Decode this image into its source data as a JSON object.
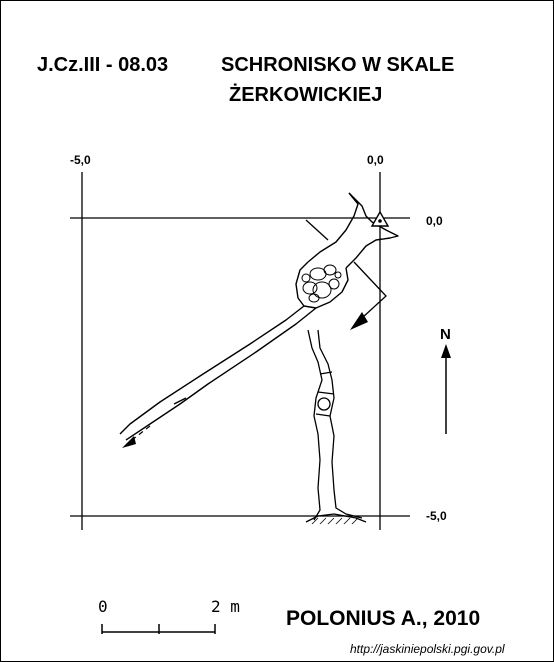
{
  "title": {
    "code": "J.Cz.III - 08.03",
    "name_line1": "SCHRONISKO W SKALE",
    "name_line2": "ŻERKOWICKIEJ"
  },
  "grid": {
    "x_left_label": "-5,0",
    "x_right_label": "0,0",
    "y_top_label": "0,0",
    "y_bottom_label": "-5,0"
  },
  "north": {
    "label": "N"
  },
  "scale": {
    "start_label": "0",
    "end_label": "2 m"
  },
  "author": "POLONIUS  A., 2010",
  "source": "http://jaskiniepolski.pgi.gov.pl"
}
